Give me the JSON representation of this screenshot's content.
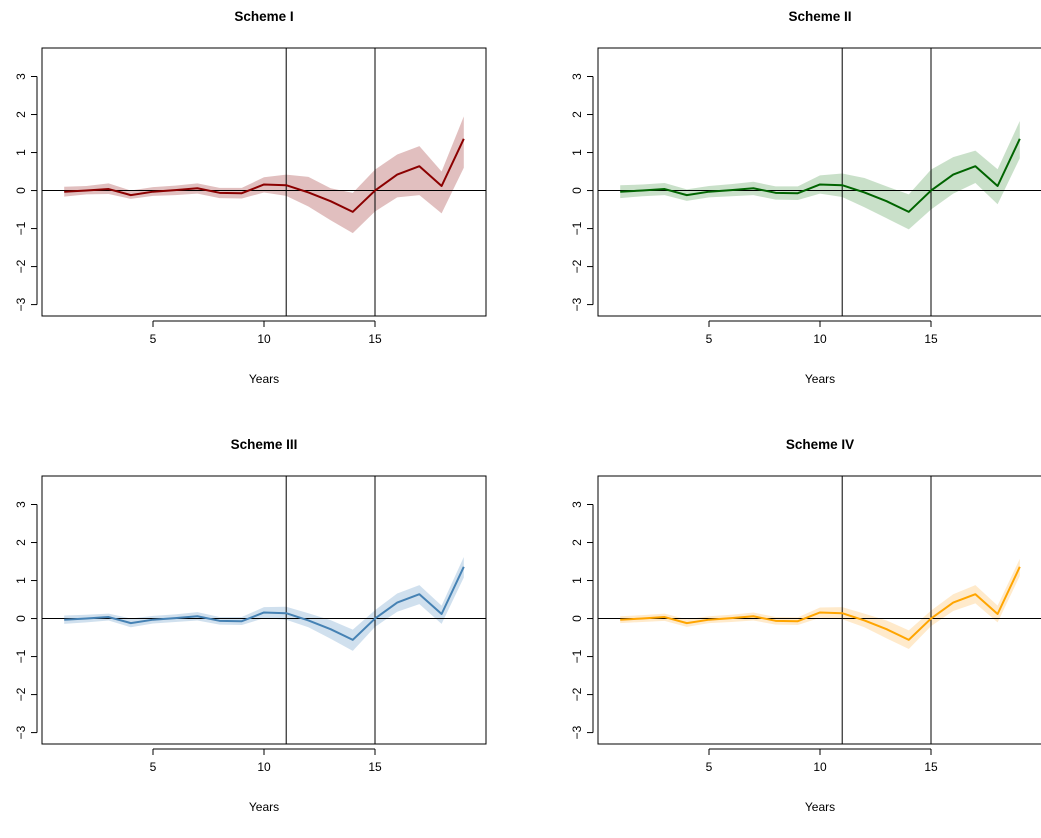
{
  "chart_data": [
    {
      "type": "line",
      "title": "Scheme I",
      "xlabel": "Years",
      "ylabel": "",
      "xlim": [
        0,
        20
      ],
      "ylim": [
        -3.3,
        3.75
      ],
      "xticks": [
        5,
        10,
        15
      ],
      "yticks": [
        -3,
        -2,
        -1,
        0,
        1,
        2,
        3
      ],
      "vlines": [
        11,
        15
      ],
      "hline": 0,
      "color": "#8B0000",
      "band_color": "#C98A8A",
      "x": [
        1,
        2,
        3,
        4,
        5,
        6,
        7,
        8,
        9,
        10,
        11,
        12,
        13,
        14,
        15,
        16,
        17,
        18,
        19
      ],
      "values": [
        -0.03,
        0.0,
        0.04,
        -0.12,
        -0.03,
        0.01,
        0.06,
        -0.06,
        -0.07,
        0.16,
        0.14,
        -0.05,
        -0.28,
        -0.56,
        0.0,
        0.42,
        0.64,
        0.12,
        1.36
      ],
      "lower": [
        -0.16,
        -0.1,
        -0.09,
        -0.22,
        -0.14,
        -0.12,
        -0.08,
        -0.2,
        -0.21,
        -0.05,
        -0.14,
        -0.42,
        -0.78,
        -1.12,
        -0.55,
        -0.18,
        -0.12,
        -0.6,
        0.6
      ],
      "upper": [
        0.1,
        0.12,
        0.19,
        0.0,
        0.09,
        0.13,
        0.19,
        0.07,
        0.07,
        0.35,
        0.42,
        0.36,
        0.06,
        -0.06,
        0.55,
        0.95,
        1.17,
        0.5,
        1.95
      ]
    },
    {
      "type": "line",
      "title": "Scheme II",
      "xlabel": "Years",
      "ylabel": "",
      "xlim": [
        0,
        20
      ],
      "ylim": [
        -3.3,
        3.75
      ],
      "xticks": [
        5,
        10,
        15
      ],
      "yticks": [
        -3,
        -2,
        -1,
        0,
        1,
        2,
        3
      ],
      "vlines": [
        11,
        15
      ],
      "hline": 0,
      "color": "#006400",
      "band_color": "#9CC79C",
      "x": [
        1,
        2,
        3,
        4,
        5,
        6,
        7,
        8,
        9,
        10,
        11,
        12,
        13,
        14,
        15,
        16,
        17,
        18,
        19
      ],
      "values": [
        -0.03,
        0.0,
        0.04,
        -0.12,
        -0.03,
        0.01,
        0.06,
        -0.06,
        -0.07,
        0.16,
        0.14,
        -0.05,
        -0.28,
        -0.56,
        0.0,
        0.42,
        0.64,
        0.12,
        1.36
      ],
      "lower": [
        -0.2,
        -0.15,
        -0.12,
        -0.27,
        -0.18,
        -0.15,
        -0.12,
        -0.24,
        -0.25,
        -0.08,
        -0.17,
        -0.44,
        -0.73,
        -1.02,
        -0.5,
        -0.08,
        0.2,
        -0.36,
        0.85
      ],
      "upper": [
        0.14,
        0.16,
        0.2,
        0.03,
        0.12,
        0.17,
        0.23,
        0.11,
        0.11,
        0.4,
        0.45,
        0.33,
        0.11,
        -0.1,
        0.55,
        0.88,
        1.05,
        0.56,
        1.83
      ]
    },
    {
      "type": "line",
      "title": "Scheme III",
      "xlabel": "Years",
      "ylabel": "",
      "xlim": [
        0,
        20
      ],
      "ylim": [
        -3.3,
        3.75
      ],
      "xticks": [
        5,
        10,
        15
      ],
      "yticks": [
        -3,
        -2,
        -1,
        0,
        1,
        2,
        3
      ],
      "vlines": [
        11,
        15
      ],
      "hline": 0,
      "color": "#4682B4",
      "band_color": "#A9C6E0",
      "x": [
        1,
        2,
        3,
        4,
        5,
        6,
        7,
        8,
        9,
        10,
        11,
        12,
        13,
        14,
        15,
        16,
        17,
        18,
        19
      ],
      "values": [
        -0.03,
        0.0,
        0.04,
        -0.12,
        -0.03,
        0.01,
        0.06,
        -0.06,
        -0.07,
        0.16,
        0.14,
        -0.05,
        -0.28,
        -0.56,
        0.0,
        0.42,
        0.64,
        0.12,
        1.36
      ],
      "lower": [
        -0.14,
        -0.1,
        -0.05,
        -0.23,
        -0.13,
        -0.09,
        -0.05,
        -0.16,
        -0.17,
        0.01,
        -0.03,
        -0.23,
        -0.53,
        -0.85,
        -0.22,
        0.18,
        0.38,
        -0.14,
        1.08
      ],
      "upper": [
        0.08,
        0.1,
        0.13,
        0.0,
        0.07,
        0.11,
        0.17,
        0.04,
        0.04,
        0.3,
        0.31,
        0.14,
        -0.04,
        -0.29,
        0.22,
        0.66,
        0.88,
        0.34,
        1.62
      ]
    },
    {
      "type": "line",
      "title": "Scheme IV",
      "xlabel": "Years",
      "ylabel": "",
      "xlim": [
        0,
        20
      ],
      "ylim": [
        -3.3,
        3.75
      ],
      "xticks": [
        5,
        10,
        15
      ],
      "yticks": [
        -3,
        -2,
        -1,
        0,
        1,
        2,
        3
      ],
      "vlines": [
        11,
        15
      ],
      "hline": 0,
      "color": "#FFA500",
      "band_color": "#FFD9A0",
      "x": [
        1,
        2,
        3,
        4,
        5,
        6,
        7,
        8,
        9,
        10,
        11,
        12,
        13,
        14,
        15,
        16,
        17,
        18,
        19
      ],
      "values": [
        -0.03,
        0.0,
        0.04,
        -0.12,
        -0.03,
        0.01,
        0.06,
        -0.06,
        -0.07,
        0.16,
        0.14,
        -0.05,
        -0.28,
        -0.56,
        0.0,
        0.42,
        0.64,
        0.12,
        1.36
      ],
      "lower": [
        -0.12,
        -0.09,
        -0.06,
        -0.22,
        -0.12,
        -0.09,
        -0.05,
        -0.16,
        -0.17,
        0.02,
        -0.02,
        -0.23,
        -0.52,
        -0.8,
        -0.2,
        0.2,
        0.4,
        -0.1,
        1.12
      ],
      "upper": [
        0.06,
        0.09,
        0.13,
        -0.02,
        0.06,
        0.1,
        0.16,
        0.04,
        0.03,
        0.29,
        0.3,
        0.13,
        -0.05,
        -0.31,
        0.21,
        0.64,
        0.88,
        0.34,
        1.57
      ]
    }
  ]
}
